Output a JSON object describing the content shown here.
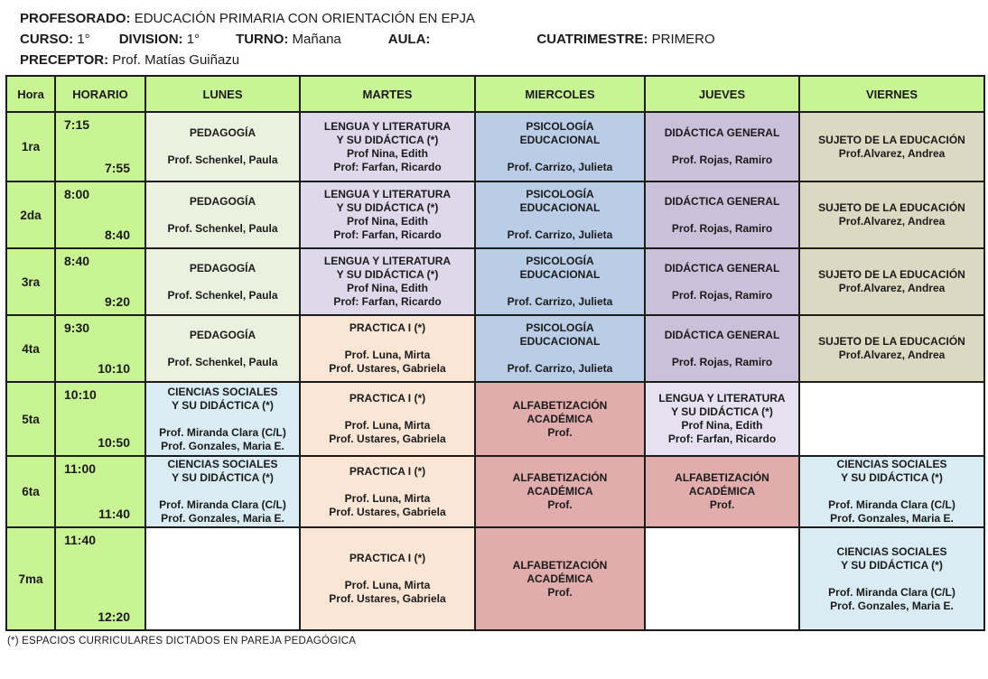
{
  "title_block": {
    "profesorado": {
      "label": "PROFESORADO:",
      "value": "EDUCACIÓN PRIMARIA CON ORIENTACIÓN EN EPJA"
    },
    "fields": [
      {
        "label": "CURSO:",
        "value": "1°"
      },
      {
        "label": "DIVISION:",
        "value": "1°"
      },
      {
        "label": "TURNO:",
        "value": "Mañana"
      },
      {
        "label": "AULA:",
        "value": ""
      },
      {
        "label": "CUATRIMESTRE:",
        "value": "PRIMERO"
      }
    ],
    "preceptor": {
      "label": "PRECEPTOR:",
      "value": "Prof. Matías Guiñazu"
    }
  },
  "colors": {
    "green": "#c9f493",
    "pale_green": "#ebf1de",
    "lavender": "#ded8eb",
    "lavender_light": "#e6e1f1",
    "blue": "#b9cde7",
    "mauve": "#cbc0da",
    "tan": "#dcd8c2",
    "peach": "#fbe5d5",
    "rose": "#e0adac",
    "cyan": "#d9ecf4",
    "white": "#ffffff",
    "border": "#1c1c1c",
    "text": "#1a1a1a"
  },
  "timetable": {
    "column_headers": [
      "Hora",
      "HORARIO",
      "LUNES",
      "MARTES",
      "MIERCOLES",
      "JUEVES",
      "VIERNES"
    ],
    "rows": [
      {
        "hora": "1ra",
        "start": "7:15",
        "end": "7:55",
        "cells": [
          {
            "bg": "pale_green",
            "lines": [
              "PEDAGOGÍA",
              "",
              "Prof. Schenkel, Paula"
            ]
          },
          {
            "bg": "lavender",
            "lines": [
              "LENGUA Y LITERATURA",
              "Y SU DIDÁCTICA (*)",
              "Prof Nina, Edith",
              "Prof: Farfan, Ricardo"
            ]
          },
          {
            "bg": "blue",
            "lines": [
              "PSICOLOGÍA",
              "EDUCACIONAL",
              "",
              "Prof. Carrizo, Julieta"
            ]
          },
          {
            "bg": "mauve",
            "lines": [
              "DIDÁCTICA GENERAL",
              "",
              "Prof. Rojas, Ramiro"
            ]
          },
          {
            "bg": "tan",
            "lines": [
              "SUJETO DE LA EDUCACIÓN",
              "Prof.Alvarez, Andrea"
            ]
          }
        ]
      },
      {
        "hora": "2da",
        "start": "8:00",
        "end": "8:40",
        "cells": [
          {
            "bg": "pale_green",
            "lines": [
              "PEDAGOGÍA",
              "",
              "Prof. Schenkel, Paula"
            ]
          },
          {
            "bg": "lavender",
            "lines": [
              "LENGUA Y LITERATURA",
              "Y SU DIDÁCTICA (*)",
              "Prof Nina, Edith",
              "Prof: Farfan, Ricardo"
            ]
          },
          {
            "bg": "blue",
            "lines": [
              "PSICOLOGÍA",
              "EDUCACIONAL",
              "",
              "Prof. Carrizo, Julieta"
            ]
          },
          {
            "bg": "mauve",
            "lines": [
              "DIDÁCTICA GENERAL",
              "",
              "Prof. Rojas, Ramiro"
            ]
          },
          {
            "bg": "tan",
            "lines": [
              "SUJETO DE LA EDUCACIÓN",
              "Prof.Alvarez, Andrea"
            ]
          }
        ]
      },
      {
        "hora": "3ra",
        "start": "8:40",
        "end": "9:20",
        "cells": [
          {
            "bg": "pale_green",
            "lines": [
              "PEDAGOGÍA",
              "",
              "Prof. Schenkel, Paula"
            ]
          },
          {
            "bg": "lavender",
            "lines": [
              "LENGUA Y LITERATURA",
              "Y SU DIDÁCTICA (*)",
              "Prof Nina, Edith",
              "Prof: Farfan, Ricardo"
            ]
          },
          {
            "bg": "blue",
            "lines": [
              "PSICOLOGÍA",
              "EDUCACIONAL",
              "",
              "Prof. Carrizo, Julieta"
            ]
          },
          {
            "bg": "mauve",
            "lines": [
              "DIDÁCTICA GENERAL",
              "",
              "Prof. Rojas, Ramiro"
            ]
          },
          {
            "bg": "tan",
            "lines": [
              "SUJETO DE LA EDUCACIÓN",
              "Prof.Alvarez, Andrea"
            ]
          }
        ]
      },
      {
        "hora": "4ta",
        "start": "9:30",
        "end": "10:10",
        "cells": [
          {
            "bg": "pale_green",
            "lines": [
              "PEDAGOGÍA",
              "",
              "Prof. Schenkel, Paula"
            ]
          },
          {
            "bg": "peach",
            "lines": [
              "PRACTICA I (*)",
              "",
              "Prof. Luna, Mirta",
              "Prof. Ustares, Gabriela"
            ]
          },
          {
            "bg": "blue",
            "lines": [
              "PSICOLOGÍA",
              "EDUCACIONAL",
              "",
              "Prof. Carrizo, Julieta"
            ]
          },
          {
            "bg": "mauve",
            "lines": [
              "DIDÁCTICA GENERAL",
              "",
              "Prof. Rojas, Ramiro"
            ]
          },
          {
            "bg": "tan",
            "lines": [
              "SUJETO DE LA EDUCACIÓN",
              "Prof.Alvarez, Andrea"
            ]
          }
        ]
      },
      {
        "hora": "5ta",
        "start": "10:10",
        "end": "10:50",
        "cells": [
          {
            "bg": "cyan",
            "lines": [
              "CIENCIAS SOCIALES",
              "Y SU DIDÁCTICA (*)",
              "",
              "Prof. Miranda Clara (C/L)",
              "Prof. Gonzales, Maria E."
            ]
          },
          {
            "bg": "peach",
            "lines": [
              "PRACTICA I (*)",
              "",
              "Prof. Luna, Mirta",
              "Prof. Ustares, Gabriela"
            ]
          },
          {
            "bg": "rose",
            "lines": [
              "ALFABETIZACIÓN",
              "ACADÉMICA",
              "Prof."
            ]
          },
          {
            "bg": "lavender_light",
            "lines": [
              "LENGUA Y LITERATURA",
              "Y SU DIDÁCTICA (*)",
              "Prof Nina, Edith",
              "Prof: Farfan, Ricardo"
            ]
          },
          {
            "bg": "white",
            "lines": []
          }
        ]
      },
      {
        "hora": "6ta",
        "start": "11:00",
        "end": "11:40",
        "cells": [
          {
            "bg": "cyan",
            "lines": [
              "CIENCIAS SOCIALES",
              "Y SU DIDÁCTICA (*)",
              "",
              "Prof. Miranda Clara (C/L)",
              "Prof. Gonzales, Maria E."
            ]
          },
          {
            "bg": "peach",
            "lines": [
              "PRACTICA I (*)",
              "",
              "Prof. Luna, Mirta",
              "Prof. Ustares, Gabriela"
            ]
          },
          {
            "bg": "rose",
            "lines": [
              "ALFABETIZACIÓN",
              "ACADÉMICA",
              "Prof."
            ]
          },
          {
            "bg": "rose",
            "lines": [
              "ALFABETIZACIÓN",
              "ACADÉMICA",
              "Prof."
            ]
          },
          {
            "bg": "cyan",
            "lines": [
              "CIENCIAS SOCIALES",
              "Y SU DIDÁCTICA (*)",
              "",
              "Prof. Miranda Clara (C/L)",
              "Prof. Gonzales, Maria E."
            ]
          }
        ]
      },
      {
        "hora": "7ma",
        "start": "11:40",
        "end": "12:20",
        "cells": [
          {
            "bg": "white",
            "lines": []
          },
          {
            "bg": "peach",
            "lines": [
              "PRACTICA I (*)",
              "",
              "Prof. Luna, Mirta",
              "Prof. Ustares, Gabriela"
            ]
          },
          {
            "bg": "rose",
            "lines": [
              "ALFABETIZACIÓN",
              "ACADÉMICA",
              "Prof."
            ]
          },
          {
            "bg": "white",
            "lines": []
          },
          {
            "bg": "cyan",
            "lines": [
              "CIENCIAS SOCIALES",
              "Y SU DIDÁCTICA (*)",
              "",
              "Prof. Miranda Clara (C/L)",
              "Prof. Gonzales, Maria E."
            ]
          }
        ]
      }
    ]
  },
  "footnote": "(*) ESPACIOS CURRICULARES DICTADOS EN PAREJA PEDAGÓGICA"
}
